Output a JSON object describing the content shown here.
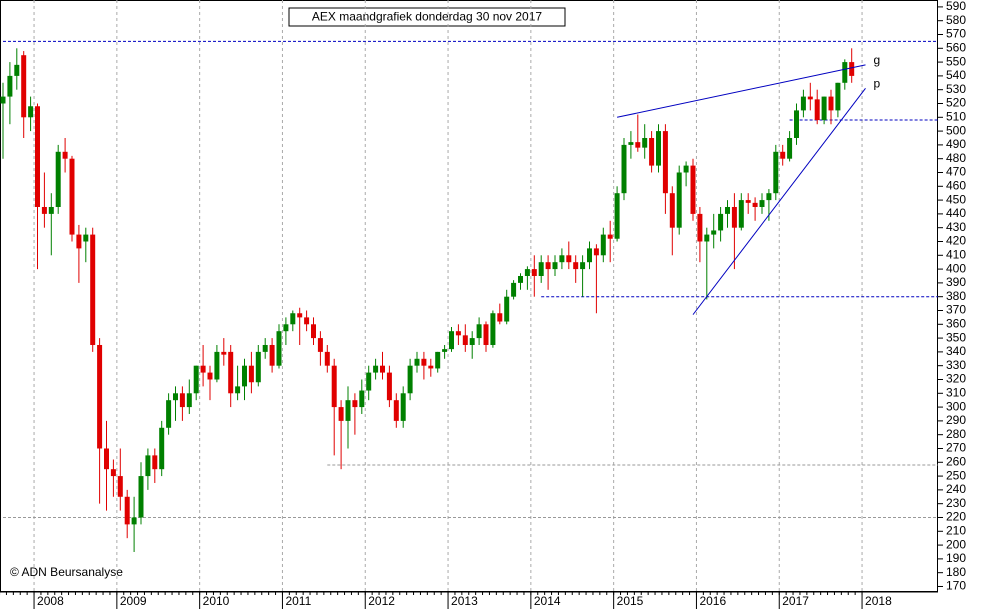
{
  "chart_data": {
    "type": "candlestick",
    "title": "AEX maandgrafiek donderdag 30 nov 2017",
    "credit": "© ADN Beursanalyse",
    "categories": [
      null,
      null,
      null,
      null,
      null,
      "2008",
      null,
      null,
      null,
      null,
      null,
      null,
      null,
      null,
      null,
      null,
      null,
      "2009",
      null,
      null,
      null,
      null,
      null,
      null,
      null,
      null,
      null,
      null,
      null,
      "2010",
      null,
      null,
      null,
      null,
      null,
      null,
      null,
      null,
      null,
      null,
      null,
      "2011",
      null,
      null,
      null,
      null,
      null,
      null,
      null,
      null,
      null,
      null,
      null,
      "2012",
      null,
      null,
      null,
      null,
      null,
      null,
      null,
      null,
      null,
      null,
      null,
      "2013",
      null,
      null,
      null,
      null,
      null,
      null,
      null,
      null,
      null,
      null,
      null,
      "2014",
      null,
      null,
      null,
      null,
      null,
      null,
      null,
      null,
      null,
      null,
      null,
      "2015",
      null,
      null,
      null,
      null,
      null,
      null,
      null,
      null,
      null,
      null,
      null,
      "2016",
      null,
      null,
      null,
      null,
      null,
      null,
      null,
      null,
      null,
      null,
      null,
      "2017",
      null,
      null,
      null,
      null,
      null,
      null,
      null,
      null,
      null,
      null,
      null,
      "2018"
    ],
    "open": [
      520,
      525,
      540,
      555,
      510,
      518,
      445,
      440,
      445,
      485,
      480,
      425,
      420,
      425,
      345,
      270,
      255,
      250,
      235,
      215,
      220,
      250,
      265,
      255,
      285,
      305,
      310,
      300,
      310,
      330,
      325,
      320,
      340,
      340,
      310,
      315,
      330,
      318,
      340,
      345,
      330,
      355,
      360,
      368,
      365,
      360,
      350,
      340,
      330,
      300,
      290,
      305,
      300,
      312,
      325,
      330,
      325,
      305,
      290,
      310,
      330,
      335,
      330,
      328,
      340,
      342,
      355,
      352,
      345,
      350,
      360,
      345,
      368,
      362,
      380,
      390,
      395,
      400,
      395,
      405,
      400,
      405,
      410,
      405,
      400,
      405,
      415,
      410,
      425,
      422,
      455,
      490,
      492,
      488,
      495,
      475,
      500,
      455,
      430,
      470,
      475,
      440,
      420,
      425,
      428,
      440,
      445,
      430,
      450,
      448,
      445,
      450,
      455,
      485,
      480,
      495,
      515,
      525,
      523,
      508,
      525,
      515,
      535,
      550,
      null,
      null
    ],
    "high": [
      535,
      550,
      560,
      558,
      525,
      520,
      470,
      455,
      490,
      495,
      482,
      432,
      430,
      430,
      350,
      290,
      262,
      270,
      240,
      235,
      260,
      270,
      270,
      290,
      310,
      315,
      315,
      320,
      330,
      345,
      330,
      345,
      350,
      345,
      330,
      335,
      340,
      345,
      350,
      350,
      360,
      365,
      370,
      372,
      370,
      365,
      355,
      345,
      335,
      305,
      315,
      310,
      320,
      330,
      335,
      340,
      330,
      310,
      315,
      335,
      340,
      340,
      335,
      340,
      345,
      358,
      360,
      360,
      355,
      365,
      362,
      370,
      375,
      385,
      392,
      397,
      402,
      410,
      410,
      410,
      410,
      415,
      420,
      410,
      410,
      420,
      418,
      430,
      435,
      460,
      495,
      500,
      512,
      505,
      500,
      505,
      505,
      460,
      475,
      478,
      480,
      445,
      430,
      440,
      445,
      450,
      455,
      455,
      455,
      452,
      455,
      458,
      490,
      490,
      500,
      520,
      530,
      535,
      530,
      525,
      530,
      535,
      552,
      560,
      null,
      null
    ],
    "low": [
      480,
      505,
      530,
      495,
      500,
      400,
      430,
      410,
      440,
      470,
      420,
      390,
      405,
      340,
      230,
      225,
      235,
      225,
      205,
      195,
      215,
      240,
      245,
      250,
      280,
      290,
      290,
      295,
      305,
      315,
      305,
      318,
      330,
      300,
      305,
      305,
      310,
      315,
      335,
      325,
      328,
      345,
      355,
      345,
      355,
      345,
      330,
      325,
      265,
      255,
      270,
      280,
      295,
      305,
      320,
      320,
      300,
      285,
      285,
      305,
      325,
      320,
      322,
      325,
      335,
      340,
      345,
      340,
      335,
      345,
      340,
      343,
      360,
      360,
      378,
      385,
      385,
      380,
      390,
      385,
      395,
      400,
      400,
      390,
      380,
      400,
      368,
      405,
      405,
      420,
      450,
      480,
      485,
      480,
      470,
      470,
      440,
      410,
      425,
      460,
      435,
      405,
      378,
      415,
      420,
      430,
      400,
      428,
      440,
      435,
      440,
      435,
      450,
      475,
      478,
      490,
      510,
      515,
      505,
      505,
      505,
      510,
      530,
      535,
      null,
      null
    ],
    "close": [
      525,
      540,
      548,
      510,
      518,
      445,
      440,
      445,
      485,
      480,
      425,
      415,
      425,
      345,
      270,
      255,
      250,
      235,
      215,
      220,
      250,
      265,
      255,
      285,
      305,
      310,
      300,
      310,
      330,
      325,
      320,
      340,
      338,
      310,
      315,
      330,
      318,
      340,
      345,
      330,
      355,
      360,
      368,
      365,
      360,
      350,
      340,
      330,
      300,
      290,
      305,
      300,
      312,
      325,
      330,
      325,
      305,
      290,
      310,
      330,
      335,
      330,
      328,
      340,
      342,
      355,
      352,
      345,
      350,
      360,
      345,
      368,
      362,
      380,
      390,
      395,
      400,
      395,
      405,
      400,
      405,
      410,
      405,
      400,
      405,
      415,
      410,
      425,
      422,
      455,
      490,
      492,
      488,
      495,
      475,
      500,
      455,
      430,
      470,
      475,
      440,
      420,
      425,
      428,
      440,
      445,
      430,
      450,
      448,
      445,
      450,
      455,
      485,
      480,
      495,
      515,
      525,
      523,
      508,
      525,
      515,
      535,
      550,
      540,
      null,
      null
    ],
    "up_color": "#008000",
    "down_color": "#e00000",
    "ylim": [
      166,
      595
    ],
    "yticks": [
      170,
      180,
      190,
      200,
      210,
      220,
      230,
      240,
      250,
      260,
      270,
      280,
      290,
      300,
      310,
      320,
      330,
      340,
      350,
      360,
      370,
      380,
      390,
      400,
      410,
      420,
      430,
      440,
      450,
      460,
      470,
      480,
      490,
      500,
      510,
      520,
      530,
      540,
      550,
      560,
      570,
      580,
      590
    ],
    "hlines": [
      {
        "value": 565,
        "from": 0,
        "color": "#0000c0"
      },
      {
        "value": 508,
        "from": 114,
        "color": "#0000c0"
      },
      {
        "value": 380,
        "from": 78,
        "color": "#0000c0"
      },
      {
        "value": 258,
        "from": 47,
        "color": "#999999"
      },
      {
        "value": 220,
        "from": 0,
        "color": "#999999"
      }
    ],
    "trendlines": [
      {
        "label": "g",
        "x": [
          89,
          125
        ],
        "y": [
          510,
          548
        ],
        "color": "#0000c0"
      },
      {
        "label": "p",
        "x": [
          100,
          125
        ],
        "y": [
          367,
          531
        ],
        "color": "#0000c0"
      }
    ]
  }
}
